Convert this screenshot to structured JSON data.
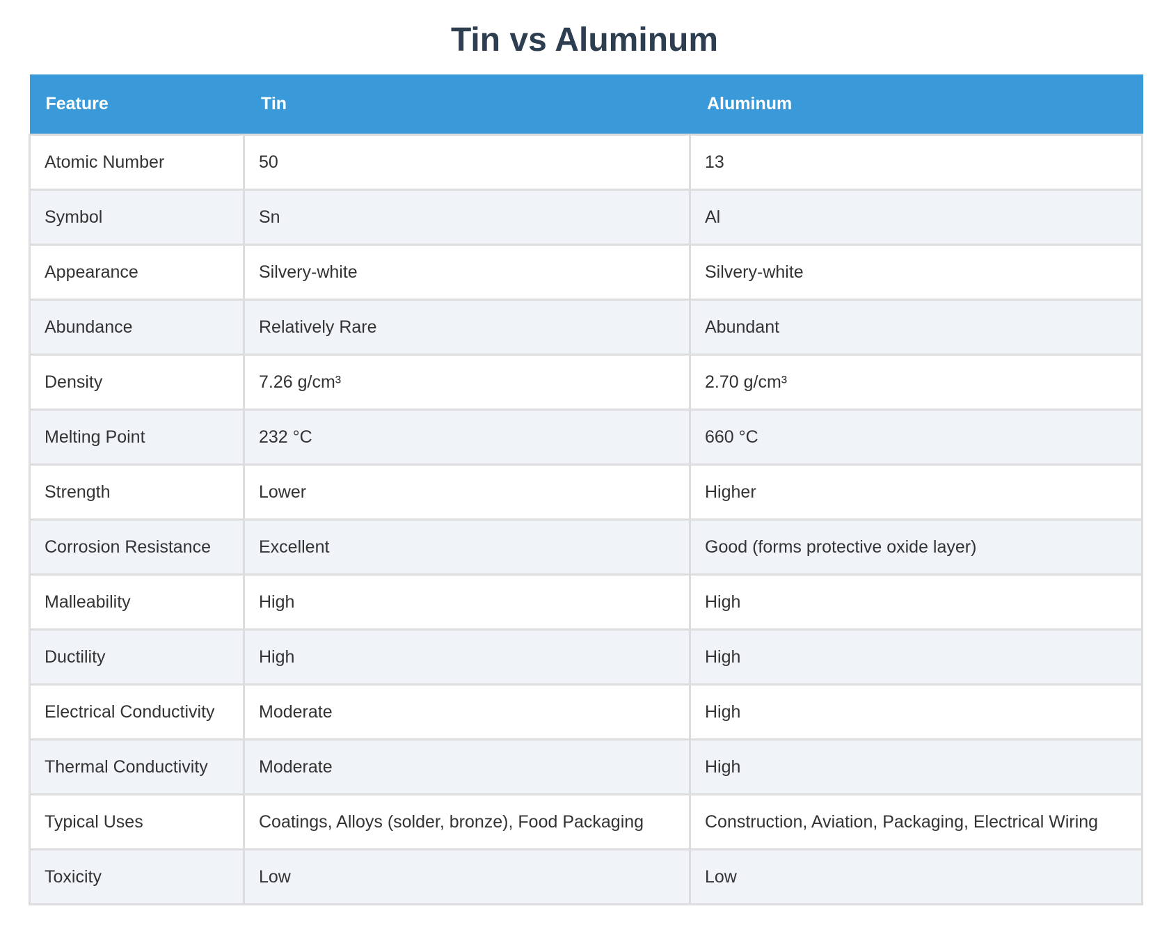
{
  "title": "Tin vs Aluminum",
  "table": {
    "headers": [
      "Feature",
      "Tin",
      "Aluminum"
    ],
    "rows": [
      [
        "Atomic Number",
        "50",
        "13"
      ],
      [
        "Symbol",
        "Sn",
        "Al"
      ],
      [
        "Appearance",
        "Silvery-white",
        "Silvery-white"
      ],
      [
        "Abundance",
        "Relatively Rare",
        "Abundant"
      ],
      [
        "Density",
        "7.26 g/cm³",
        "2.70 g/cm³"
      ],
      [
        "Melting Point",
        "232 °C",
        "660 °C"
      ],
      [
        "Strength",
        "Lower",
        "Higher"
      ],
      [
        "Corrosion Resistance",
        "Excellent",
        "Good (forms protective oxide layer)"
      ],
      [
        "Malleability",
        "High",
        "High"
      ],
      [
        "Ductility",
        "High",
        "High"
      ],
      [
        "Electrical Conductivity",
        "Moderate",
        "High"
      ],
      [
        "Thermal Conductivity",
        "Moderate",
        "High"
      ],
      [
        "Typical Uses",
        "Coatings, Alloys (solder, bronze), Food Packaging",
        "Construction, Aviation, Packaging, Electrical Wiring"
      ],
      [
        "Toxicity",
        "Low",
        "Low"
      ]
    ]
  },
  "colors": {
    "title": "#2c3e50",
    "header_bg": "#3a9ad9",
    "header_text": "#ffffff",
    "row_alt_bg": "#f0f3f8",
    "border": "#dddddd"
  }
}
